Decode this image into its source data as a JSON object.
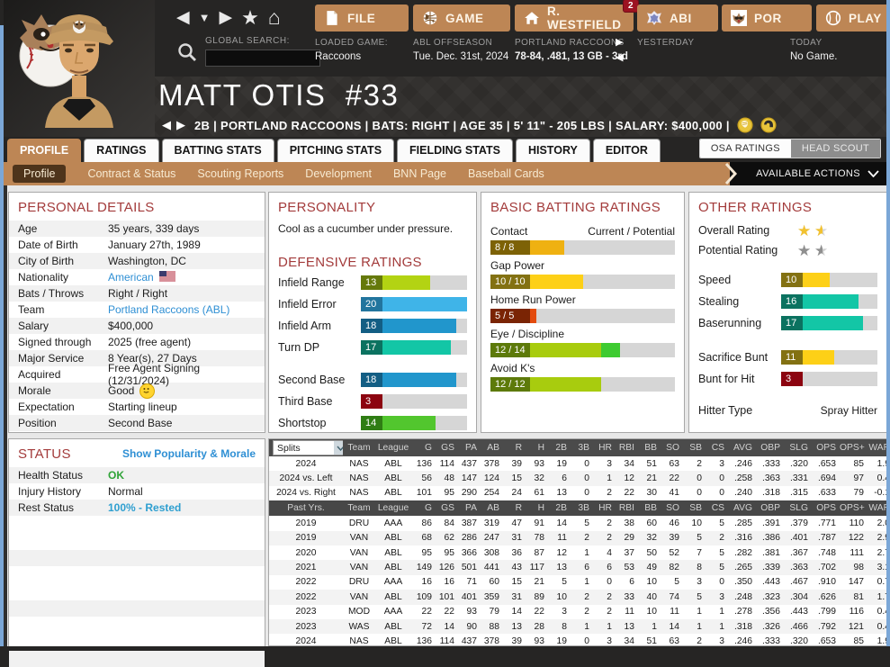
{
  "accent_color": "#bd8655",
  "topbar": {
    "global_search_label": "GLOBAL SEARCH:",
    "search_value": "",
    "menus": [
      {
        "label": "FILE",
        "icon": "file-icon"
      },
      {
        "label": "GAME",
        "icon": "globe-icon"
      },
      {
        "label": "R. WESTFIELD",
        "icon": "home-icon",
        "badge": "2"
      },
      {
        "label": "ABI",
        "icon": "league-logo-icon"
      },
      {
        "label": "POR",
        "icon": "raccoon-logo-icon"
      },
      {
        "label": "PLAY",
        "icon": "baseball-icon"
      }
    ],
    "loaded_game": {
      "label": "LOADED GAME:",
      "value": "Raccoons"
    },
    "season": {
      "line1": "ABL OFFSEASON",
      "line2": "Tue. Dec. 31st, 2024"
    },
    "team": {
      "line1": "PORTLAND RACCOONS",
      "line2": "78-84, .481, 13 GB - 3rd"
    },
    "yesterday_label": "YESTERDAY",
    "today": {
      "label": "TODAY",
      "value": "No Game."
    }
  },
  "player": {
    "name": "MATT OTIS",
    "number": "#33",
    "subtitle": "2B | PORTLAND RACCOONS  |  BATS: RIGHT  |  AGE 35  |  5' 11\" - 205 LBS  |  SALARY: $400,000  |"
  },
  "tabs": [
    {
      "label": "PROFILE",
      "active": true
    },
    {
      "label": "RATINGS",
      "active": false
    },
    {
      "label": "BATTING STATS",
      "active": false
    },
    {
      "label": "PITCHING STATS",
      "active": false
    },
    {
      "label": "FIELDING STATS",
      "active": false
    },
    {
      "label": "HISTORY",
      "active": false
    },
    {
      "label": "EDITOR",
      "active": false
    }
  ],
  "header_buttons": [
    {
      "label": "OSA RATINGS",
      "style": "light"
    },
    {
      "label": "HEAD SCOUT",
      "style": "dark"
    }
  ],
  "subtabs": [
    {
      "label": "Profile",
      "active": true
    },
    {
      "label": "Contract & Status",
      "active": false
    },
    {
      "label": "Scouting Reports",
      "active": false
    },
    {
      "label": "Development",
      "active": false
    },
    {
      "label": "BNN Page",
      "active": false
    },
    {
      "label": "Baseball Cards",
      "active": false
    }
  ],
  "available_actions_label": "AVAILABLE ACTIONS",
  "personal_details": {
    "title": "PERSONAL DETAILS",
    "rows": [
      {
        "label": "Age",
        "value": "35 years, 339 days",
        "type": "text"
      },
      {
        "label": "Date of Birth",
        "value": "January 27th, 1989",
        "type": "text"
      },
      {
        "label": "City of Birth",
        "value": "Washington, DC",
        "type": "text"
      },
      {
        "label": "Nationality",
        "value": "American",
        "type": "flag-link"
      },
      {
        "label": "Bats / Throws",
        "value": "Right / Right",
        "type": "text"
      },
      {
        "label": "Team",
        "value": "Portland Raccoons (ABL)",
        "type": "link"
      },
      {
        "label": "Salary",
        "value": "$400,000",
        "type": "text"
      },
      {
        "label": "Signed through",
        "value": "2025 (free agent)",
        "type": "text"
      },
      {
        "label": "Major Service",
        "value": "8 Year(s), 27 Days",
        "type": "text"
      },
      {
        "label": "Acquired",
        "value": "Free Agent Signing (12/31/2024)",
        "type": "text"
      },
      {
        "label": "Morale",
        "value": "Good",
        "type": "morale"
      },
      {
        "label": "Expectation",
        "value": "Starting lineup",
        "type": "text"
      },
      {
        "label": "Position",
        "value": "Second Base",
        "type": "text"
      }
    ]
  },
  "personality": {
    "title": "PERSONALITY",
    "text": "Cool as a cucumber under pressure."
  },
  "defensive": {
    "title": "DEFENSIVE RATINGS",
    "scale_max": 20,
    "group1": [
      {
        "label": "Infield Range",
        "value": 13,
        "color": "#b3d313",
        "chip": "#65790b"
      },
      {
        "label": "Infield Error",
        "value": 20,
        "color": "#3fb4e8",
        "chip": "#22759e"
      },
      {
        "label": "Infield Arm",
        "value": 18,
        "color": "#2196cc",
        "chip": "#135e84"
      },
      {
        "label": "Turn DP",
        "value": 17,
        "color": "#13c6a6",
        "chip": "#0b7260"
      }
    ],
    "group2": [
      {
        "label": "Second Base",
        "value": 18,
        "color": "#2196cc",
        "chip": "#135e84"
      },
      {
        "label": "Third Base",
        "value": 3,
        "color": "#e30b17",
        "chip": "#8c0410"
      },
      {
        "label": "Shortstop",
        "value": 14,
        "color": "#52c62e",
        "chip": "#2f7d14"
      }
    ]
  },
  "batting": {
    "title": "BASIC BATTING RATINGS",
    "header_right": "Current / Potential",
    "scale_max": 20,
    "bars": [
      {
        "label": "Contact",
        "current": 8,
        "potential": 8,
        "color": "#efb111",
        "chip": "#7d6206",
        "pot_color": "#efb111"
      },
      {
        "label": "Gap Power",
        "current": 10,
        "potential": 10,
        "color": "#fdd017",
        "chip": "#837112",
        "pot_color": "#fdd017"
      },
      {
        "label": "Home Run Power",
        "current": 5,
        "potential": 5,
        "color": "#e34b0e",
        "chip": "#7a2404",
        "pot_color": "#e34b0e"
      },
      {
        "label": "Eye / Discipline",
        "current": 12,
        "potential": 14,
        "color": "#a8cc0e",
        "chip": "#5d7a0a",
        "pot_color": "#3ecb31"
      },
      {
        "label": "Avoid K's",
        "current": 12,
        "potential": 12,
        "color": "#a8cc0e",
        "chip": "#5d7a0a",
        "pot_color": "#a8cc0e"
      }
    ]
  },
  "other": {
    "title": "OTHER RATINGS",
    "star_rows": [
      {
        "label": "Overall Rating",
        "stars": 1.5,
        "full_color": "#f2c230",
        "empty_color": "#d8d8d8"
      },
      {
        "label": "Potential Rating",
        "stars": 1.5,
        "full_color": "#8f8f8f",
        "empty_color": "#cfcfcf"
      }
    ],
    "scale_max": 20,
    "group1": [
      {
        "label": "Speed",
        "value": 10,
        "color": "#fdd017",
        "chip": "#837112"
      },
      {
        "label": "Stealing",
        "value": 16,
        "color": "#13c6a6",
        "chip": "#0b7260"
      },
      {
        "label": "Baserunning",
        "value": 17,
        "color": "#13c6a6",
        "chip": "#0b7260"
      }
    ],
    "group2": [
      {
        "label": "Sacrifice Bunt",
        "value": 11,
        "color": "#fdd017",
        "chip": "#837112"
      },
      {
        "label": "Bunt for Hit",
        "value": 3,
        "color": "#e30b17",
        "chip": "#8c0410"
      }
    ],
    "hitter_type_label": "Hitter Type",
    "hitter_type_value": "Spray Hitter"
  },
  "status": {
    "title": "STATUS",
    "link": "Show Popularity & Morale",
    "rows": [
      {
        "label": "Health Status",
        "value": "OK",
        "type": "ok"
      },
      {
        "label": "Injury History",
        "value": "Normal",
        "type": "text"
      },
      {
        "label": "Rest Status",
        "value": "100% - Rested",
        "type": "info"
      }
    ],
    "empty_rows": 6
  },
  "stats_table": {
    "dropdown_value": "Splits",
    "columns": [
      "Splits",
      "Team",
      "League",
      "G",
      "GS",
      "PA",
      "AB",
      "R",
      "H",
      "2B",
      "3B",
      "HR",
      "RBI",
      "BB",
      "SO",
      "SB",
      "CS",
      "AVG",
      "OBP",
      "SLG",
      "OPS",
      "OPS+",
      "WAR"
    ],
    "splits_rows": [
      [
        "2024",
        "NAS",
        "ABL",
        "136",
        "114",
        "437",
        "378",
        "39",
        "93",
        "19",
        "0",
        "3",
        "34",
        "51",
        "63",
        "2",
        "3",
        ".246",
        ".333",
        ".320",
        ".653",
        "85",
        "1.9"
      ],
      [
        "2024 vs. Left",
        "NAS",
        "ABL",
        "56",
        "48",
        "147",
        "124",
        "15",
        "32",
        "6",
        "0",
        "1",
        "12",
        "21",
        "22",
        "0",
        "0",
        ".258",
        ".363",
        ".331",
        ".694",
        "97",
        "0.4"
      ],
      [
        "2024 vs. Right",
        "NAS",
        "ABL",
        "101",
        "95",
        "290",
        "254",
        "24",
        "61",
        "13",
        "0",
        "2",
        "22",
        "30",
        "41",
        "0",
        "0",
        ".240",
        ".318",
        ".315",
        ".633",
        "79",
        "-0.1"
      ]
    ],
    "past_header": "Past Yrs.",
    "past_rows": [
      [
        "2019",
        "DRU",
        "AAA",
        "86",
        "84",
        "387",
        "319",
        "47",
        "91",
        "14",
        "5",
        "2",
        "38",
        "60",
        "46",
        "10",
        "5",
        ".285",
        ".391",
        ".379",
        ".771",
        "110",
        "2.0"
      ],
      [
        "2019",
        "VAN",
        "ABL",
        "68",
        "62",
        "286",
        "247",
        "31",
        "78",
        "11",
        "2",
        "2",
        "29",
        "32",
        "39",
        "5",
        "2",
        ".316",
        ".386",
        ".401",
        ".787",
        "122",
        "2.9"
      ],
      [
        "2020",
        "VAN",
        "ABL",
        "95",
        "95",
        "366",
        "308",
        "36",
        "87",
        "12",
        "1",
        "4",
        "37",
        "50",
        "52",
        "7",
        "5",
        ".282",
        ".381",
        ".367",
        ".748",
        "111",
        "2.7"
      ],
      [
        "2021",
        "VAN",
        "ABL",
        "149",
        "126",
        "501",
        "441",
        "43",
        "117",
        "13",
        "6",
        "6",
        "53",
        "49",
        "82",
        "8",
        "5",
        ".265",
        ".339",
        ".363",
        ".702",
        "98",
        "3.1"
      ],
      [
        "2022",
        "DRU",
        "AAA",
        "16",
        "16",
        "71",
        "60",
        "15",
        "21",
        "5",
        "1",
        "0",
        "6",
        "10",
        "5",
        "3",
        "0",
        ".350",
        ".443",
        ".467",
        ".910",
        "147",
        "0.7"
      ],
      [
        "2022",
        "VAN",
        "ABL",
        "109",
        "101",
        "401",
        "359",
        "31",
        "89",
        "10",
        "2",
        "2",
        "33",
        "40",
        "74",
        "5",
        "3",
        ".248",
        ".323",
        ".304",
        ".626",
        "81",
        "1.7"
      ],
      [
        "2023",
        "MOD",
        "AAA",
        "22",
        "22",
        "93",
        "79",
        "14",
        "22",
        "3",
        "2",
        "2",
        "11",
        "10",
        "11",
        "1",
        "1",
        ".278",
        ".356",
        ".443",
        ".799",
        "116",
        "0.4"
      ],
      [
        "2023",
        "WAS",
        "ABL",
        "72",
        "14",
        "90",
        "88",
        "13",
        "28",
        "8",
        "1",
        "1",
        "13",
        "1",
        "14",
        "1",
        "1",
        ".318",
        ".326",
        ".466",
        ".792",
        "121",
        "0.4"
      ],
      [
        "2024",
        "NAS",
        "ABL",
        "136",
        "114",
        "437",
        "378",
        "39",
        "93",
        "19",
        "0",
        "3",
        "34",
        "51",
        "63",
        "2",
        "3",
        ".246",
        ".333",
        ".320",
        ".653",
        "85",
        "1.9"
      ]
    ]
  }
}
